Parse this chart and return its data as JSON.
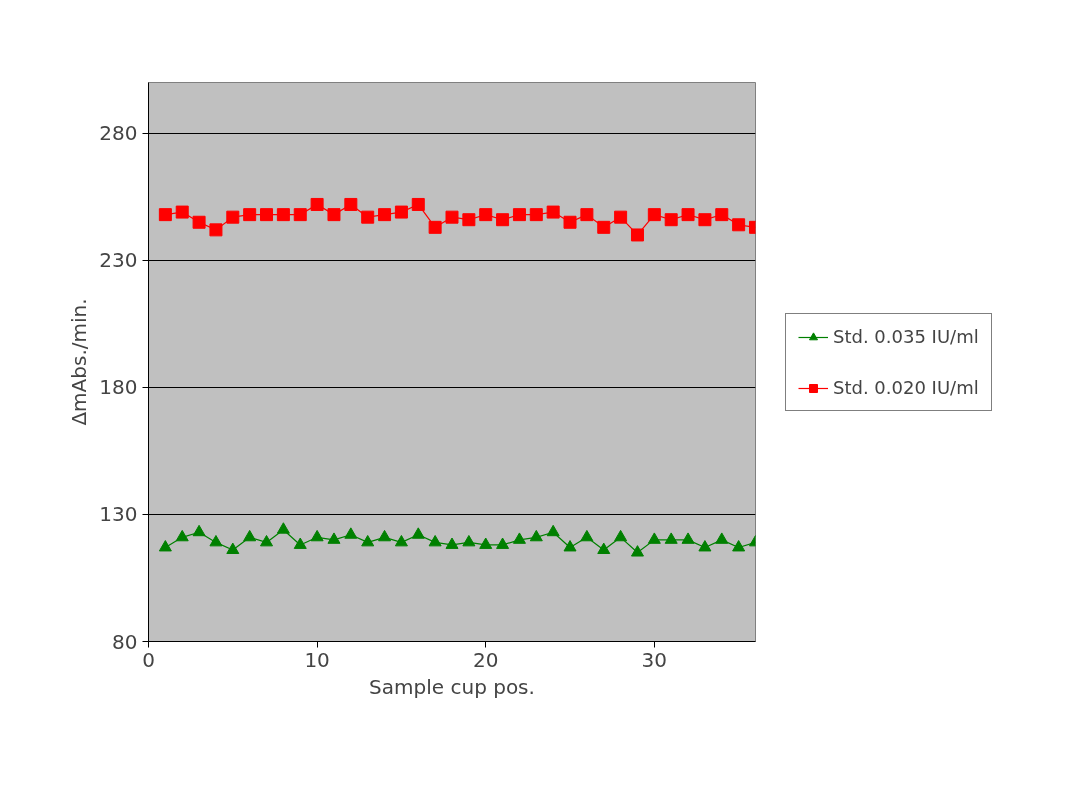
{
  "chart_data": {
    "type": "line",
    "xlabel": "Sample cup pos.",
    "ylabel": "ΔmAbs./min.",
    "x": [
      1,
      2,
      3,
      4,
      5,
      6,
      7,
      8,
      9,
      10,
      11,
      12,
      13,
      14,
      15,
      16,
      17,
      18,
      19,
      20,
      21,
      22,
      23,
      24,
      25,
      26,
      27,
      28,
      29,
      30,
      31,
      32,
      33,
      34,
      35,
      36
    ],
    "series": [
      {
        "name": "Std. 0.035 IU/ml",
        "color": "#008000",
        "marker": "triangle",
        "values": [
          117,
          121,
          123,
          119,
          116,
          121,
          119,
          124,
          118,
          121,
          120,
          122,
          119,
          121,
          119,
          122,
          119,
          118,
          119,
          118,
          118,
          120,
          121,
          123,
          117,
          121,
          116,
          121,
          115,
          120,
          120,
          120,
          117,
          120,
          117,
          119
        ]
      },
      {
        "name": "Std. 0.020 IU/ml",
        "color": "#ff0000",
        "marker": "square",
        "values": [
          248,
          249,
          245,
          242,
          247,
          248,
          248,
          248,
          248,
          252,
          248,
          252,
          247,
          248,
          249,
          252,
          243,
          247,
          246,
          248,
          246,
          248,
          248,
          249,
          245,
          248,
          243,
          247,
          240,
          248,
          246,
          248,
          246,
          248,
          244,
          243
        ]
      }
    ],
    "xlim": [
      0,
      36
    ],
    "xticks": [
      0,
      10,
      20,
      30
    ],
    "ylim": [
      80,
      300
    ],
    "yticks": [
      80,
      130,
      180,
      230,
      280
    ],
    "grid": "y",
    "legend": "right",
    "line_style": "solid"
  }
}
